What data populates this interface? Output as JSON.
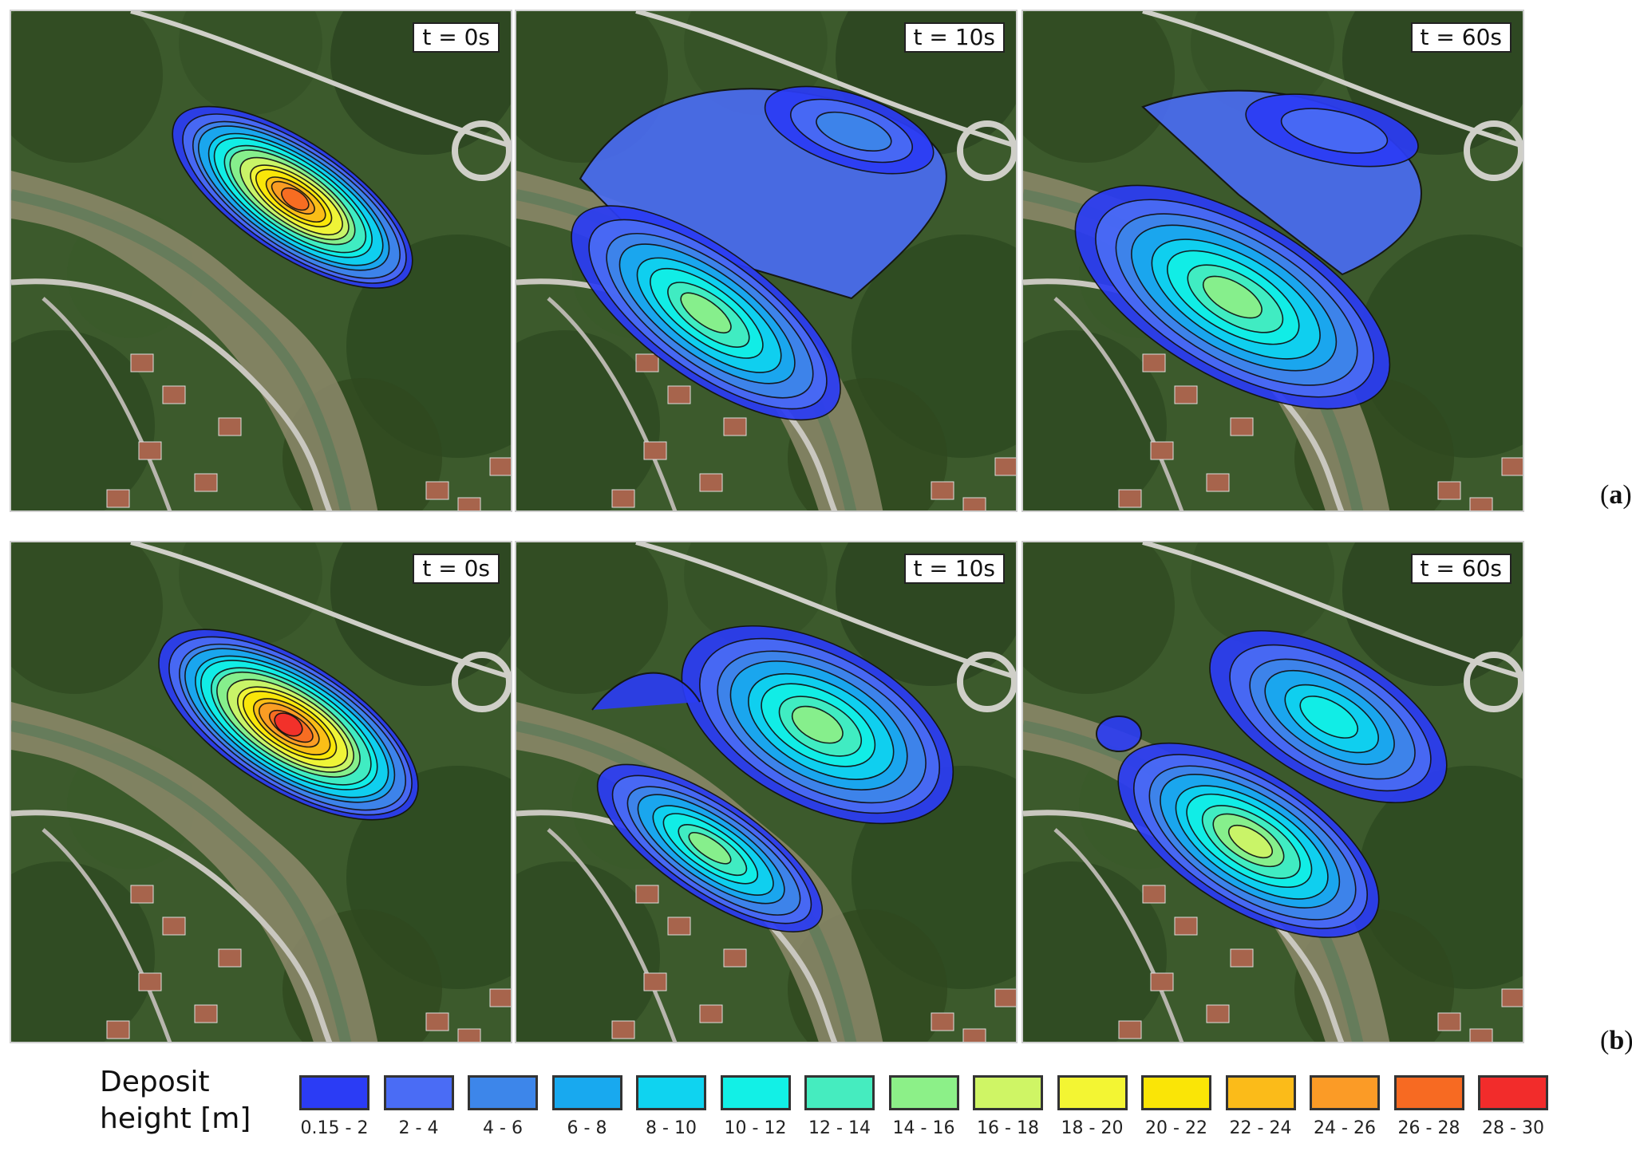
{
  "rows": [
    {
      "label": "a",
      "panels": [
        {
          "time": "t = 0s"
        },
        {
          "time": "t = 10s"
        },
        {
          "time": "t = 60s"
        }
      ]
    },
    {
      "label": "b",
      "panels": [
        {
          "time": "t = 0s"
        },
        {
          "time": "t = 10s"
        },
        {
          "time": "t = 60s"
        }
      ]
    }
  ],
  "legend": {
    "title_line1": "Deposit",
    "title_line2": "height [m]",
    "classes": [
      {
        "label": "0.15 - 2",
        "color": "#2b3cf5"
      },
      {
        "label": "2 - 4",
        "color": "#4a6cf5"
      },
      {
        "label": "4 - 6",
        "color": "#3d86ea"
      },
      {
        "label": "6 - 8",
        "color": "#18a9ef"
      },
      {
        "label": "8 - 10",
        "color": "#0fd3f0"
      },
      {
        "label": "10 - 12",
        "color": "#12f0e6"
      },
      {
        "label": "12 - 14",
        "color": "#45ecbf"
      },
      {
        "label": "14 - 16",
        "color": "#8cf088"
      },
      {
        "label": "16 - 18",
        "color": "#cff565"
      },
      {
        "label": "18 - 20",
        "color": "#f3f533"
      },
      {
        "label": "20 - 22",
        "color": "#fae506"
      },
      {
        "label": "22 - 24",
        "color": "#fbbb19"
      },
      {
        "label": "24 - 26",
        "color": "#fb9b26"
      },
      {
        "label": "26 - 28",
        "color": "#f76a22"
      },
      {
        "label": "28 - 30",
        "color": "#f22c2b"
      }
    ]
  }
}
